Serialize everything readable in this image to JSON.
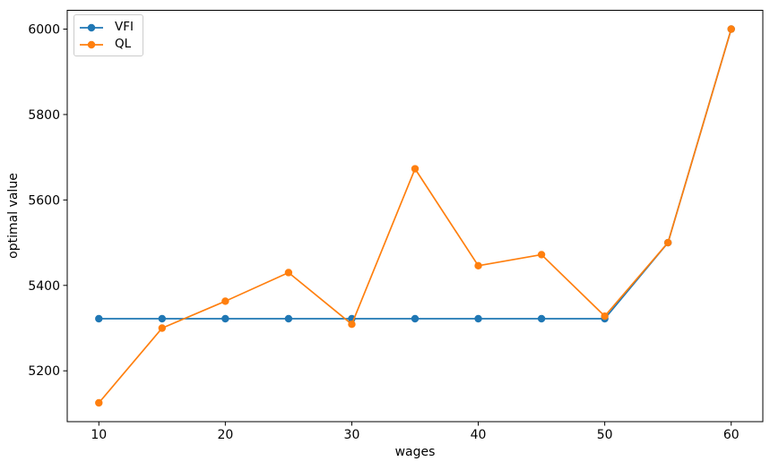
{
  "chart_data": {
    "type": "line",
    "title": "",
    "xlabel": "wages",
    "ylabel": "optimal value",
    "x": [
      10,
      15,
      20,
      25,
      30,
      35,
      40,
      45,
      50,
      55,
      60
    ],
    "series": [
      {
        "name": "VFI",
        "color": "#1f77b4",
        "values": [
          5322,
          5322,
          5322,
          5322,
          5322,
          5322,
          5322,
          5322,
          5322,
          5500,
          6000
        ]
      },
      {
        "name": "QL",
        "color": "#ff7f0e",
        "values": [
          5125,
          5300,
          5363,
          5430,
          5309,
          5673,
          5446,
          5472,
          5328,
          5500,
          6000
        ]
      }
    ],
    "x_ticks": [
      10,
      20,
      30,
      40,
      50,
      60
    ],
    "y_ticks": [
      5200,
      5400,
      5600,
      5800,
      6000
    ],
    "xlim": [
      7.5,
      62.5
    ],
    "ylim": [
      5081,
      6044
    ],
    "grid": false,
    "legend_position": "upper-left",
    "marker": "circle",
    "axis_color": "#000000"
  }
}
